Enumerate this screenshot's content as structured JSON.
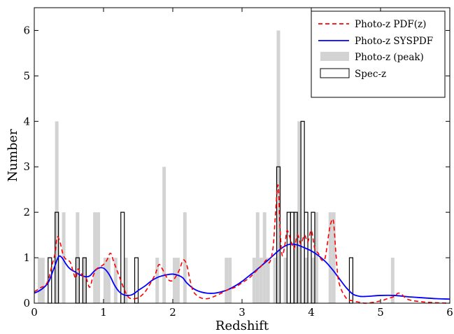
{
  "chart_data": {
    "type": "histogram+line",
    "xlabel": "Redshift",
    "ylabel": "Number",
    "xlim": [
      0,
      6
    ],
    "ylim": [
      0,
      6.5
    ],
    "x_ticks": [
      0,
      1,
      2,
      3,
      4,
      5,
      6
    ],
    "y_ticks": [
      0,
      1,
      2,
      3,
      4,
      5,
      6
    ],
    "grid": false,
    "legend_position": "top-right",
    "bin_width": 0.05,
    "series": [
      {
        "name": "Photo-z PDF(z)",
        "kind": "line",
        "style": "dashed",
        "color": "#ff0000",
        "x": [
          0.0,
          0.05,
          0.1,
          0.15,
          0.2,
          0.25,
          0.3,
          0.33,
          0.37,
          0.42,
          0.47,
          0.52,
          0.57,
          0.6,
          0.63,
          0.66,
          0.7,
          0.75,
          0.8,
          0.85,
          0.9,
          0.95,
          1.0,
          1.05,
          1.1,
          1.15,
          1.2,
          1.25,
          1.3,
          1.35,
          1.4,
          1.5,
          1.6,
          1.7,
          1.75,
          1.8,
          1.85,
          1.9,
          1.95,
          2.0,
          2.05,
          2.1,
          2.15,
          2.2,
          2.25,
          2.3,
          2.4,
          2.5,
          2.6,
          2.7,
          2.8,
          2.9,
          3.0,
          3.1,
          3.2,
          3.3,
          3.35,
          3.4,
          3.45,
          3.48,
          3.52,
          3.55,
          3.58,
          3.62,
          3.65,
          3.7,
          3.75,
          3.8,
          3.85,
          3.9,
          3.95,
          4.0,
          4.05,
          4.1,
          4.15,
          4.2,
          4.25,
          4.28,
          4.32,
          4.36,
          4.4,
          4.5,
          4.6,
          4.7,
          4.8,
          5.0,
          5.1,
          5.2,
          5.25,
          5.3,
          5.4,
          5.6,
          5.8,
          6.0
        ],
        "y": [
          0.25,
          0.3,
          0.35,
          0.38,
          0.5,
          0.8,
          1.1,
          1.45,
          1.35,
          1.05,
          0.95,
          0.9,
          0.65,
          0.55,
          0.75,
          0.7,
          0.6,
          0.55,
          0.35,
          0.6,
          0.75,
          0.8,
          0.85,
          0.95,
          1.1,
          0.9,
          0.7,
          0.5,
          0.3,
          0.15,
          0.1,
          0.12,
          0.25,
          0.5,
          0.65,
          0.85,
          0.75,
          0.6,
          0.5,
          0.5,
          0.6,
          0.75,
          0.95,
          0.85,
          0.5,
          0.25,
          0.12,
          0.1,
          0.15,
          0.22,
          0.3,
          0.35,
          0.45,
          0.55,
          0.7,
          0.85,
          0.95,
          0.9,
          1.25,
          1.9,
          2.6,
          1.6,
          1.05,
          1.3,
          1.6,
          1.4,
          1.2,
          1.5,
          1.3,
          1.5,
          1.35,
          1.6,
          1.2,
          1.1,
          0.95,
          1.0,
          1.5,
          1.75,
          1.8,
          1.0,
          0.45,
          0.12,
          0.05,
          0.02,
          0.0,
          0.05,
          0.1,
          0.15,
          0.22,
          0.2,
          0.08,
          0.03,
          0.01,
          0.0
        ]
      },
      {
        "name": "Photo-z SYSPDF",
        "kind": "line",
        "style": "solid",
        "color": "#0000ff",
        "x": [
          0.0,
          0.1,
          0.2,
          0.28,
          0.35,
          0.4,
          0.45,
          0.5,
          0.55,
          0.6,
          0.65,
          0.7,
          0.75,
          0.8,
          0.85,
          0.9,
          0.95,
          1.0,
          1.05,
          1.1,
          1.15,
          1.2,
          1.25,
          1.3,
          1.35,
          1.4,
          1.45,
          1.5,
          1.6,
          1.7,
          1.8,
          1.9,
          2.0,
          2.1,
          2.15,
          2.2,
          2.3,
          2.4,
          2.5,
          2.6,
          2.7,
          2.8,
          2.9,
          3.0,
          3.1,
          3.2,
          3.3,
          3.4,
          3.5,
          3.6,
          3.7,
          3.8,
          3.9,
          4.0,
          4.1,
          4.2,
          4.3,
          4.4,
          4.5,
          4.6,
          4.7,
          4.8,
          5.0,
          5.2,
          5.4,
          5.6,
          5.8,
          6.0
        ],
        "y": [
          0.22,
          0.3,
          0.45,
          0.75,
          1.02,
          1.0,
          0.88,
          0.78,
          0.72,
          0.68,
          0.63,
          0.6,
          0.58,
          0.6,
          0.68,
          0.75,
          0.78,
          0.77,
          0.7,
          0.58,
          0.42,
          0.3,
          0.22,
          0.18,
          0.17,
          0.18,
          0.22,
          0.28,
          0.38,
          0.5,
          0.58,
          0.62,
          0.64,
          0.6,
          0.55,
          0.45,
          0.32,
          0.25,
          0.22,
          0.22,
          0.25,
          0.3,
          0.38,
          0.48,
          0.6,
          0.72,
          0.85,
          0.98,
          1.12,
          1.24,
          1.3,
          1.28,
          1.22,
          1.15,
          1.05,
          0.92,
          0.75,
          0.55,
          0.35,
          0.2,
          0.15,
          0.15,
          0.17,
          0.17,
          0.14,
          0.12,
          0.1,
          0.09
        ]
      },
      {
        "name": "Photo-z (peak)",
        "kind": "histogram",
        "style": "filled",
        "color": "#d3d3d3",
        "x": [
          0.05,
          0.1,
          0.3,
          0.4,
          0.6,
          0.7,
          0.85,
          0.9,
          1.0,
          1.05,
          1.15,
          1.3,
          1.75,
          1.85,
          2.0,
          2.05,
          2.15,
          2.75,
          2.8,
          3.15,
          3.2,
          3.25,
          3.3,
          3.35,
          3.45,
          3.5,
          3.6,
          3.75,
          3.8,
          3.9,
          4.0,
          4.05,
          4.25,
          4.3,
          5.15
        ],
        "y": [
          1,
          1,
          4,
          2,
          2,
          1,
          2,
          2,
          1,
          1,
          1,
          1,
          1,
          3,
          1,
          1,
          2,
          1,
          1,
          1,
          2,
          1,
          2,
          1,
          1,
          6,
          1,
          2,
          4,
          1,
          1,
          2,
          2,
          2,
          1
        ]
      },
      {
        "name": "Spec-z",
        "kind": "histogram",
        "style": "outline",
        "color": "#000000",
        "x": [
          0.2,
          0.3,
          0.6,
          0.7,
          1.25,
          1.45,
          3.5,
          3.65,
          3.7,
          3.75,
          3.85,
          3.9,
          4.0,
          4.55
        ],
        "y": [
          1,
          2,
          1,
          1,
          2,
          1,
          3,
          2,
          2,
          2,
          4,
          2,
          2,
          1
        ]
      }
    ]
  }
}
